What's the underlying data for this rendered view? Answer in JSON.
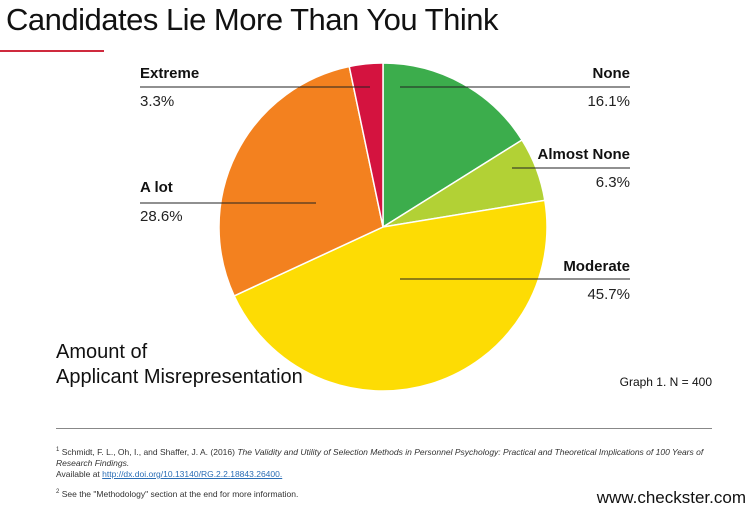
{
  "title": "Candidates Lie More Than You Think",
  "subtitle": [
    "Amount of",
    "Applicant Misrepresentation"
  ],
  "graph_note": "Graph 1. N = 400",
  "footnotes": [
    {
      "num": "1",
      "authors": "Schmidt, F. L., Oh, I., and Shaffer, J. A. (2016)",
      "work": "The Validity and Utility of Selection Methods in Personnel Psychology: Practical and Theoretical Implications of 100 Years of Research Findings.",
      "available": "Available at",
      "link": "http://dx.doi.org/10.13140/RG.2.2.18843.26400."
    },
    {
      "num": "2",
      "text": "See the \"Methodology\" section at the end for more information."
    }
  ],
  "website": "www.checkster.com",
  "chart_data": {
    "type": "pie",
    "start": "12 o'clock",
    "direction": "clockwise",
    "slices": [
      {
        "label": "None",
        "value": 16.1,
        "display": "16.1%",
        "color": "#3cad4c"
      },
      {
        "label": "Almost None",
        "value": 6.3,
        "display": "6.3%",
        "color": "#b2d135"
      },
      {
        "label": "Moderate",
        "value": 45.7,
        "display": "45.7%",
        "color": "#fddc04"
      },
      {
        "label": "A lot",
        "value": 28.6,
        "display": "28.6%",
        "color": "#f3811f"
      },
      {
        "label": "Extreme",
        "value": 3.3,
        "display": "3.3%",
        "color": "#d4133f"
      }
    ]
  }
}
